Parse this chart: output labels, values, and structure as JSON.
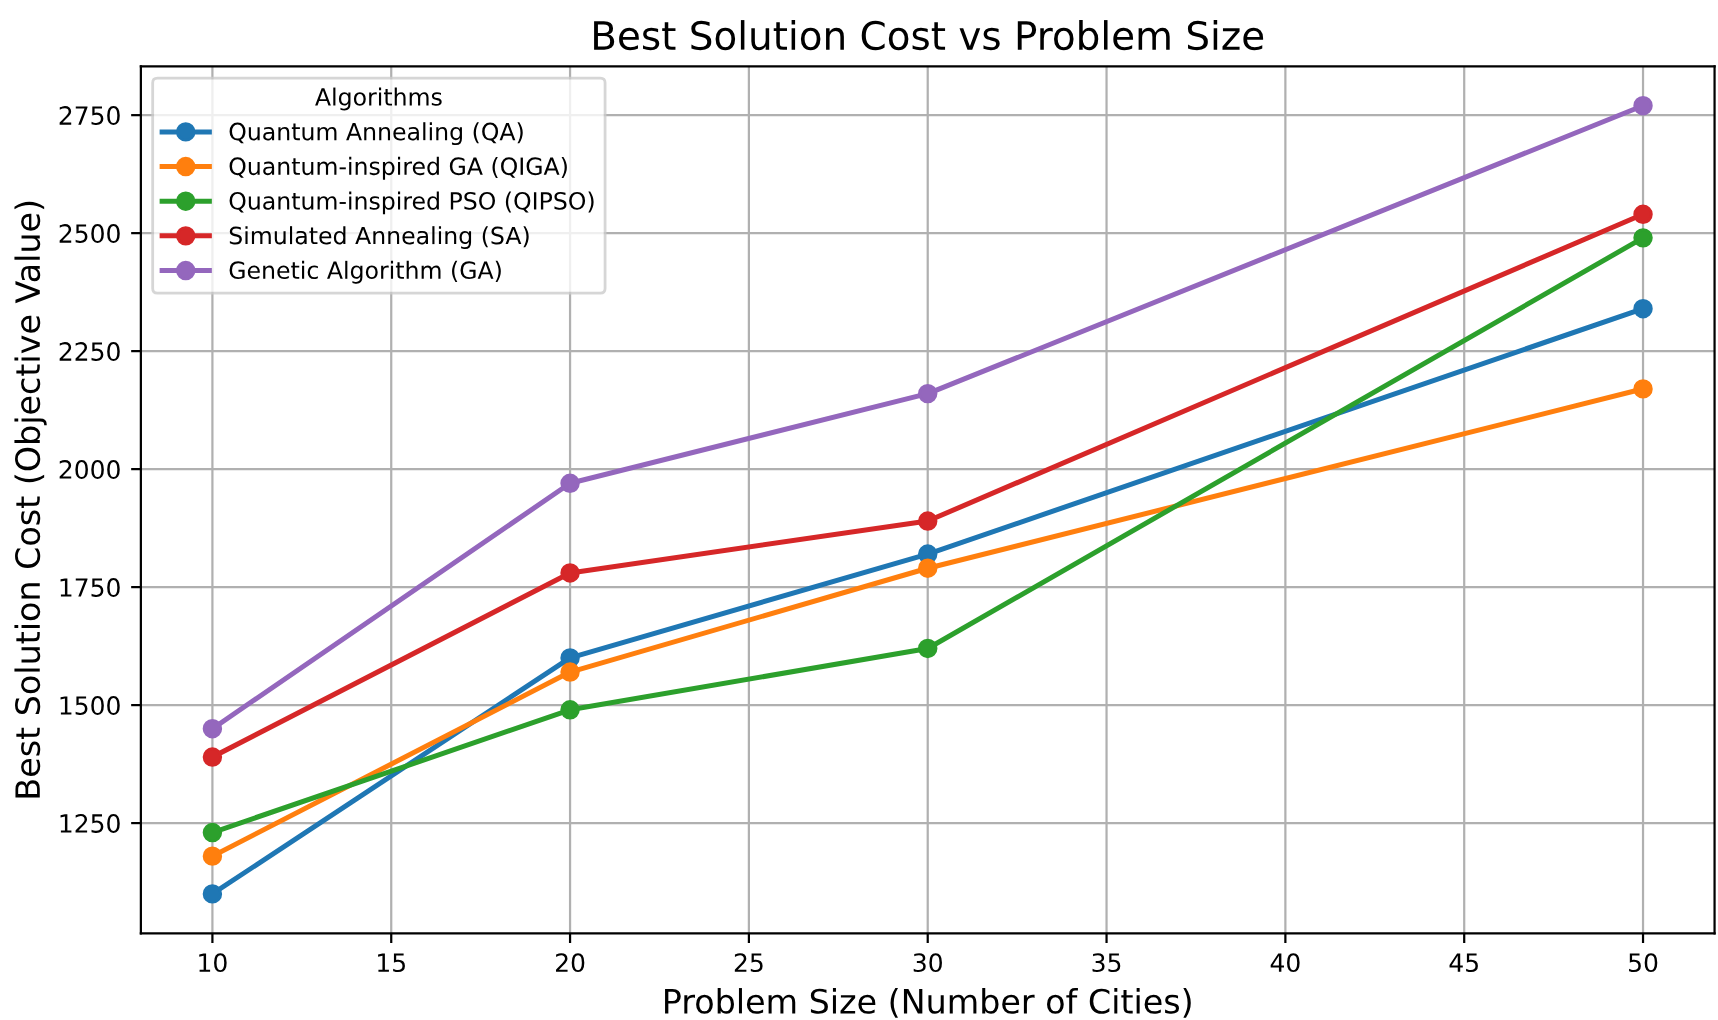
{
  "chart_data": {
    "type": "line",
    "title": "Best Solution Cost vs Problem Size",
    "xlabel": "Problem Size (Number of Cities)",
    "ylabel": "Best Solution Cost (Objective Value)",
    "legend_title": "Algorithms",
    "x": [
      10,
      20,
      30,
      50
    ],
    "series": [
      {
        "name": "Quantum Annealing (QA)",
        "color": "#1f77b4",
        "values": [
          1100,
          1600,
          1820,
          2340
        ]
      },
      {
        "name": "Quantum-inspired GA (QIGA)",
        "color": "#ff7f0e",
        "values": [
          1180,
          1570,
          1790,
          2170
        ]
      },
      {
        "name": "Quantum-inspired PSO (QIPSO)",
        "color": "#2ca02c",
        "values": [
          1230,
          1490,
          1620,
          2490
        ]
      },
      {
        "name": "Simulated Annealing (SA)",
        "color": "#d62728",
        "values": [
          1390,
          1780,
          1890,
          2540
        ]
      },
      {
        "name": "Genetic Algorithm (GA)",
        "color": "#9467bd",
        "values": [
          1450,
          1970,
          2160,
          2770
        ]
      }
    ],
    "xlim": [
      8,
      52
    ],
    "ylim": [
      1016.5,
      2853.5
    ],
    "xticks": [
      10,
      15,
      20,
      25,
      30,
      35,
      40,
      45,
      50
    ],
    "yticks": [
      1250,
      1500,
      1750,
      2000,
      2250,
      2500,
      2750
    ],
    "grid": true,
    "legend": "top left",
    "marker": "circle",
    "line_style": "solid"
  }
}
